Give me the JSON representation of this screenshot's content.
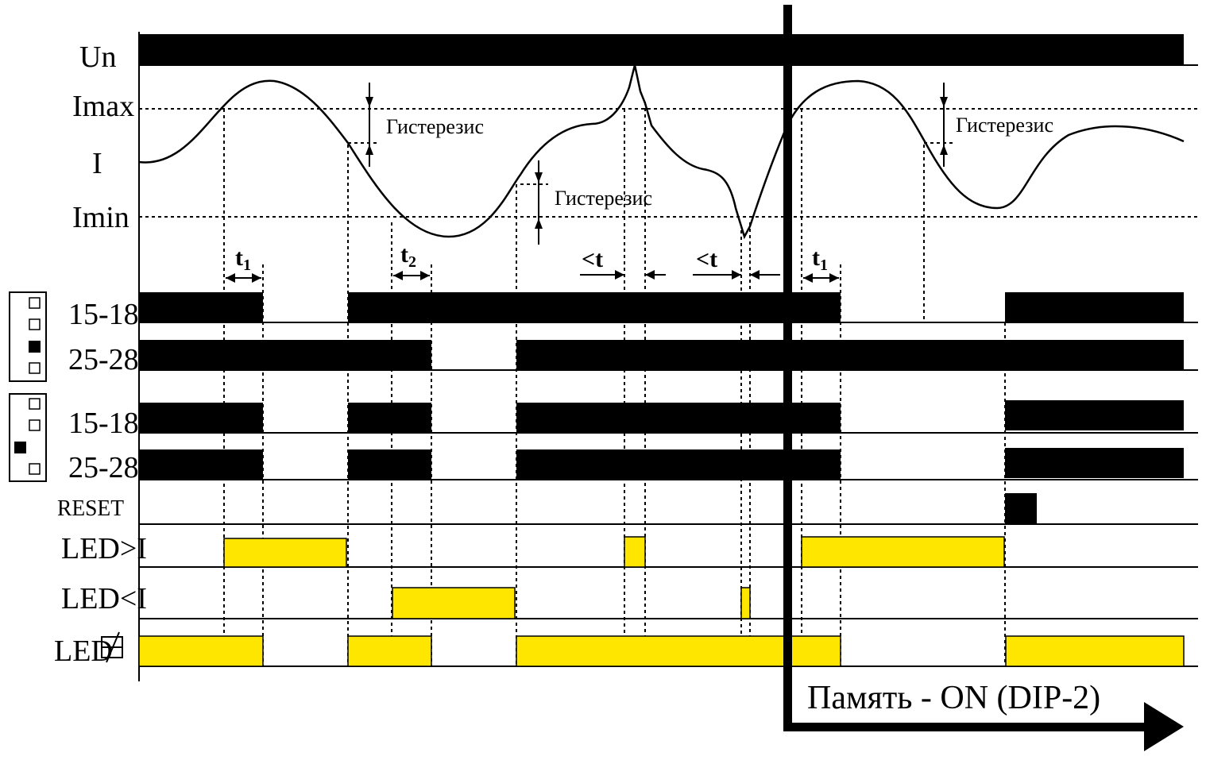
{
  "labels": {
    "un": "Un",
    "imax": "Imax",
    "i": "I",
    "imin": "Imin",
    "ch_a_15_18": "15-18",
    "ch_a_25_28": "25-28",
    "ch_b_15_18": "15-18",
    "ch_b_25_28": "25-28",
    "reset": "RESET",
    "led_gt": "LED>I",
    "led_lt": "LED<I",
    "led_relay": "LED"
  },
  "annotations": {
    "hysteresis_1": "Гистерезис",
    "hysteresis_2": "Гистерезис",
    "hysteresis_3": "Гистерезис",
    "t1_a": "t",
    "t1_a_sub": "1",
    "t2": "t",
    "t2_sub": "2",
    "lt_a": "<t",
    "lt_b": "<t",
    "t1_b": "t",
    "t1_b_sub": "1"
  },
  "memory_label": "Память - ON (DIP-2)",
  "colors": {
    "led": "#ffe600",
    "bar": "#000000"
  }
}
